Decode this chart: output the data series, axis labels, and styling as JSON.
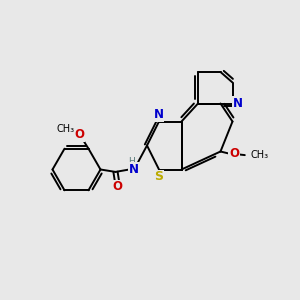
{
  "bg_color": "#e8e8e8",
  "bond_color": "#000000",
  "bond_lw": 1.4,
  "atom_colors": {
    "N": "#0000cc",
    "O": "#cc0000",
    "S": "#bbaa00",
    "H": "#557777",
    "C": "#000000"
  },
  "font_size": 8.5,
  "fig_bg": "#e8e8e8"
}
